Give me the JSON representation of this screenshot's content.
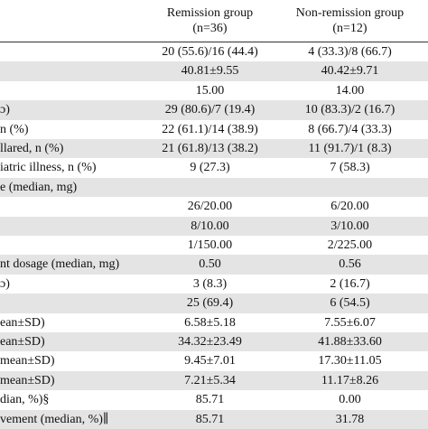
{
  "table": {
    "header": [
      "Remission group",
      "(n=36)",
      "Non-remission group",
      "(n=12)"
    ],
    "rows": [
      {
        "remission": "20 (55.6)/16 (44.4)",
        "non_remission": "4 (33.3)/8 (66.7)"
      },
      {
        "remission": "40.81±9.55",
        "non_remission": "40.42±9.71"
      },
      {
        "remission": "15.00",
        "non_remission": "14.00"
      },
      {
        "label": "ɔ)",
        "remission": "29 (80.6)/7 (19.4)",
        "non_remission": "10 (83.3)/2 (16.7)"
      },
      {
        "label": "n (%)",
        "remission": "22 (61.1)/14 (38.9)",
        "non_remission": "8 (66.7)/4 (33.3)"
      },
      {
        "label": "llared, n (%)",
        "remission": "21 (61.8)/13 (38.2)",
        "non_remission": "11 (91.7)/1 (8.3)"
      },
      {
        "label": "iatric illness, n (%)",
        "remission": "9 (27.3)",
        "non_remission": "7 (58.3)"
      },
      {
        "label": "e (median, mg)"
      },
      {
        "remission": "26/20.00",
        "non_remission": "6/20.00"
      },
      {
        "remission": "8/10.00",
        "non_remission": "3/10.00"
      },
      {
        "remission": "1/150.00",
        "non_remission": "2/225.00"
      },
      {
        "label": "nt dosage (median, mg)",
        "remission": "0.50",
        "non_remission": "0.56"
      },
      {
        "label": "ɔ)",
        "remission": "3 (8.3)",
        "non_remission": "2 (16.7)"
      },
      {
        "remission": "25 (69.4)",
        "non_remission": "6 (54.5)"
      },
      {
        "label": "ean±SD)",
        "remission": "6.58±5.18",
        "non_remission": "7.55±6.07"
      },
      {
        "label": "ean±SD)",
        "remission": "34.32±23.49",
        "non_remission": "41.88±33.60"
      },
      {
        "label": "mean±SD)",
        "remission": "9.45±7.01",
        "non_remission": "17.30±11.05"
      },
      {
        "label": "mean±SD)",
        "remission": "7.21±5.34",
        "non_remission": "11.17±8.26"
      },
      {
        "label": "dian, %)§",
        "remission": "85.71",
        "non_remission": "0.00"
      },
      {
        "label": "vement (median, %)∥",
        "remission": "85.71",
        "non_remission": "31.78"
      }
    ]
  }
}
